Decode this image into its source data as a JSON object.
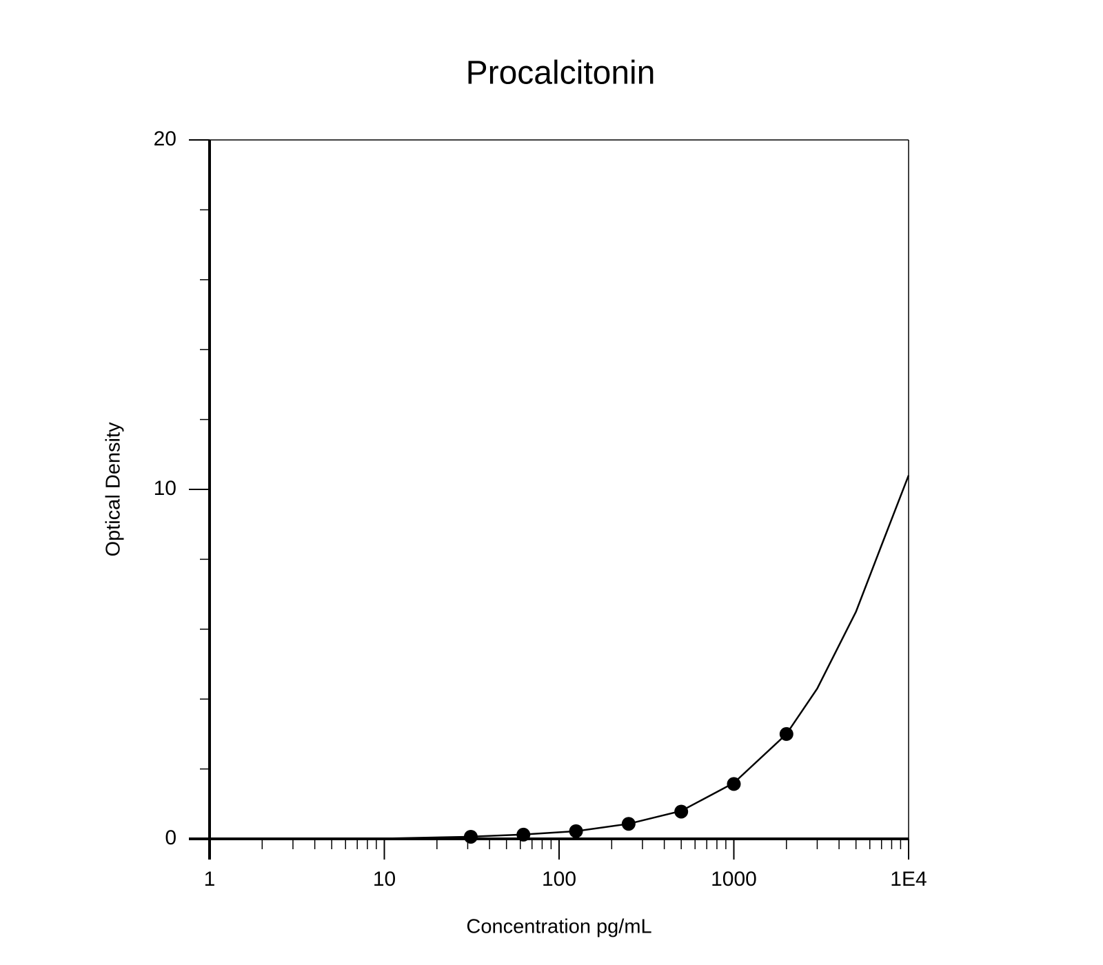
{
  "chart_data": {
    "type": "scatter",
    "title": "Procalcitonin",
    "x_label": "Concentration pg/mL",
    "y_label": "Optical Density",
    "x_scale": "log",
    "xlim": [
      1,
      10000
    ],
    "xticks": [
      1,
      10,
      100,
      1000,
      {
        "value": 10000,
        "label": "1E4"
      }
    ],
    "x_minor_ticks": [
      2,
      3,
      4,
      5,
      6,
      7,
      8,
      9,
      20,
      30,
      40,
      50,
      60,
      70,
      80,
      90,
      200,
      300,
      400,
      500,
      600,
      700,
      800,
      900,
      2000,
      3000,
      4000,
      5000,
      6000,
      7000,
      8000,
      9000
    ],
    "ylim": [
      0,
      20
    ],
    "yticks": [
      0,
      10,
      20
    ],
    "y_minor_ticks": [
      2,
      4,
      6,
      8,
      12,
      14,
      16,
      18
    ],
    "color": "#000000",
    "x": [
      31.25,
      62.5,
      125,
      250,
      500,
      1000,
      2000
    ],
    "values": [
      0.06,
      0.12,
      0.22,
      0.43,
      0.78,
      1.57,
      3.0
    ],
    "curve": {
      "x": [
        1,
        10,
        30,
        60,
        125,
        250,
        500,
        1000,
        2000,
        3000,
        5000,
        7000,
        10000
      ],
      "y": [
        0,
        0.01,
        0.06,
        0.12,
        0.22,
        0.43,
        0.8,
        1.6,
        3.0,
        4.3,
        6.5,
        8.4,
        10.4
      ]
    }
  }
}
